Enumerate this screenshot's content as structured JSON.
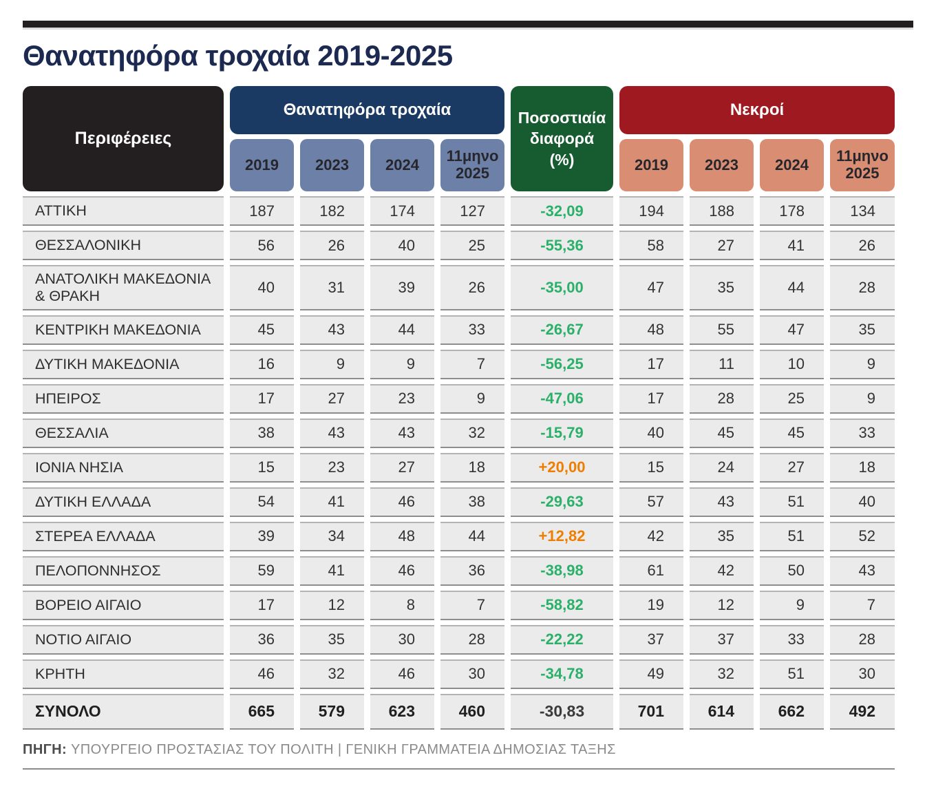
{
  "page": {
    "title": "Θανατηφόρα τροχαία 2019-2025",
    "source_label": "ΠΗΓΗ:",
    "source_text": "ΥΠΟΥΡΓΕΙΟ ΠΡΟΣΤΑΣΙΑΣ ΤΟΥ ΠΟΛΙΤΗ | ΓΕΝΙΚΗ ΓΡΑΜΜΑΤΕΙΑ ΔΗΜΟΣΙΑΣ ΤΑΞΗΣ"
  },
  "table": {
    "region_header": "Περιφέρειες",
    "fatal_group": {
      "label": "Θανατηφόρα τροχαία",
      "years": [
        "2019",
        "2023",
        "2024",
        "11μηνο 2025"
      ]
    },
    "pct_header_lines": [
      "Ποσοστιαία",
      "διαφορά",
      "(%)"
    ],
    "dead_group": {
      "label": "Νεκροί",
      "years": [
        "2019",
        "2023",
        "2024",
        "11μηνο 2025"
      ]
    },
    "rows": [
      {
        "region": "ΑΤΤΙΚΗ",
        "fatal": [
          187,
          182,
          174,
          127
        ],
        "pct": "-32,09",
        "dead": [
          194,
          188,
          178,
          134
        ]
      },
      {
        "region": "ΘΕΣΣΑΛΟΝΙΚΗ",
        "fatal": [
          56,
          26,
          40,
          25
        ],
        "pct": "-55,36",
        "dead": [
          58,
          27,
          41,
          26
        ]
      },
      {
        "region": "ΑΝΑΤΟΛΙΚΗ ΜΑΚΕΔΟΝΙΑ & ΘΡΑΚΗ",
        "fatal": [
          40,
          31,
          39,
          26
        ],
        "pct": "-35,00",
        "dead": [
          47,
          35,
          44,
          28
        ]
      },
      {
        "region": "ΚΕΝΤΡΙΚΗ ΜΑΚΕΔΟΝΙΑ",
        "fatal": [
          45,
          43,
          44,
          33
        ],
        "pct": "-26,67",
        "dead": [
          48,
          55,
          47,
          35
        ]
      },
      {
        "region": "ΔΥΤΙΚΗ ΜΑΚΕΔΟΝΙΑ",
        "fatal": [
          16,
          9,
          9,
          7
        ],
        "pct": "-56,25",
        "dead": [
          17,
          11,
          10,
          9
        ]
      },
      {
        "region": "ΗΠΕΙΡΟΣ",
        "fatal": [
          17,
          27,
          23,
          9
        ],
        "pct": "-47,06",
        "dead": [
          17,
          28,
          25,
          9
        ]
      },
      {
        "region": "ΘΕΣΣΑΛΙΑ",
        "fatal": [
          38,
          43,
          43,
          32
        ],
        "pct": "-15,79",
        "dead": [
          40,
          45,
          45,
          33
        ]
      },
      {
        "region": "ΙΟΝΙΑ ΝΗΣΙΑ",
        "fatal": [
          15,
          23,
          27,
          18
        ],
        "pct": "+20,00",
        "dead": [
          15,
          24,
          27,
          18
        ]
      },
      {
        "region": "ΔΥΤΙΚΗ ΕΛΛΑΔΑ",
        "fatal": [
          54,
          41,
          46,
          38
        ],
        "pct": "-29,63",
        "dead": [
          57,
          43,
          51,
          40
        ]
      },
      {
        "region": "ΣΤΕΡΕΑ ΕΛΛΑΔΑ",
        "fatal": [
          39,
          34,
          48,
          44
        ],
        "pct": "+12,82",
        "dead": [
          42,
          35,
          51,
          52
        ]
      },
      {
        "region": "ΠΕΛΟΠΟΝΝΗΣΟΣ",
        "fatal": [
          59,
          41,
          46,
          36
        ],
        "pct": "-38,98",
        "dead": [
          61,
          42,
          50,
          43
        ]
      },
      {
        "region": "ΒΟΡΕΙΟ ΑΙΓΑΙΟ",
        "fatal": [
          17,
          12,
          8,
          7
        ],
        "pct": "-58,82",
        "dead": [
          19,
          12,
          9,
          7
        ]
      },
      {
        "region": "ΝΟΤΙΟ ΑΙΓΑΙΟ",
        "fatal": [
          36,
          35,
          30,
          28
        ],
        "pct": "-22,22",
        "dead": [
          37,
          37,
          33,
          28
        ]
      },
      {
        "region": "ΚΡΗΤΗ",
        "fatal": [
          46,
          32,
          46,
          30
        ],
        "pct": "-34,78",
        "dead": [
          49,
          32,
          51,
          30
        ]
      }
    ],
    "total": {
      "region": "ΣΥΝΟΛΟ",
      "fatal": [
        665,
        579,
        623,
        460
      ],
      "pct": "-30,83",
      "dead": [
        701,
        614,
        662,
        492
      ]
    }
  },
  "colors": {
    "fatal_header": "#1a3a64",
    "year_fatal": "#6d81a8",
    "pct_header": "#175c30",
    "dead_header": "#9e1a20",
    "year_dead": "#d98d72",
    "pct_negative": "#2bb06a",
    "pct_positive": "#ee7d00",
    "title_color": "#1c2a52",
    "bar_color": "#231f20",
    "cell_bg": "#ebebeb"
  },
  "chart_data": {
    "type": "table",
    "title": "Θανατηφόρα τροχαία 2019-2025",
    "columns": [
      "Περιφέρειες",
      "Θανατηφόρα τροχαία 2019",
      "Θανατηφόρα τροχαία 2023",
      "Θανατηφόρα τροχαία 2024",
      "Θανατηφόρα τροχαία 11μηνο 2025",
      "Ποσοστιαία διαφορά (%)",
      "Νεκροί 2019",
      "Νεκροί 2023",
      "Νεκροί 2024",
      "Νεκροί 11μηνο 2025"
    ],
    "rows": [
      [
        "ΑΤΤΙΚΗ",
        187,
        182,
        174,
        127,
        -32.09,
        194,
        188,
        178,
        134
      ],
      [
        "ΘΕΣΣΑΛΟΝΙΚΗ",
        56,
        26,
        40,
        25,
        -55.36,
        58,
        27,
        41,
        26
      ],
      [
        "ΑΝΑΤΟΛΙΚΗ ΜΑΚΕΔΟΝΙΑ & ΘΡΑΚΗ",
        40,
        31,
        39,
        26,
        -35.0,
        47,
        35,
        44,
        28
      ],
      [
        "ΚΕΝΤΡΙΚΗ ΜΑΚΕΔΟΝΙΑ",
        45,
        43,
        44,
        33,
        -26.67,
        48,
        55,
        47,
        35
      ],
      [
        "ΔΥΤΙΚΗ ΜΑΚΕΔΟΝΙΑ",
        16,
        9,
        9,
        7,
        -56.25,
        17,
        11,
        10,
        9
      ],
      [
        "ΗΠΕΙΡΟΣ",
        17,
        27,
        23,
        9,
        -47.06,
        17,
        28,
        25,
        9
      ],
      [
        "ΘΕΣΣΑΛΙΑ",
        38,
        43,
        43,
        32,
        -15.79,
        40,
        45,
        45,
        33
      ],
      [
        "ΙΟΝΙΑ ΝΗΣΙΑ",
        15,
        23,
        27,
        18,
        20.0,
        15,
        24,
        27,
        18
      ],
      [
        "ΔΥΤΙΚΗ ΕΛΛΑΔΑ",
        54,
        41,
        46,
        38,
        -29.63,
        57,
        43,
        51,
        40
      ],
      [
        "ΣΤΕΡΕΑ ΕΛΛΑΔΑ",
        39,
        34,
        48,
        44,
        12.82,
        42,
        35,
        51,
        52
      ],
      [
        "ΠΕΛΟΠΟΝΝΗΣΟΣ",
        59,
        41,
        46,
        36,
        -38.98,
        61,
        42,
        50,
        43
      ],
      [
        "ΒΟΡΕΙΟ ΑΙΓΑΙΟ",
        17,
        12,
        8,
        7,
        -58.82,
        19,
        12,
        9,
        7
      ],
      [
        "ΝΟΤΙΟ ΑΙΓΑΙΟ",
        36,
        35,
        30,
        28,
        -22.22,
        37,
        37,
        33,
        28
      ],
      [
        "ΚΡΗΤΗ",
        46,
        32,
        46,
        30,
        -34.78,
        49,
        32,
        51,
        30
      ],
      [
        "ΣΥΝΟΛΟ",
        665,
        579,
        623,
        460,
        -30.83,
        701,
        614,
        662,
        492
      ]
    ],
    "source": "ΥΠΟΥΡΓΕΙΟ ΠΡΟΣΤΑΣΙΑΣ ΤΟΥ ΠΟΛΙΤΗ | ΓΕΝΙΚΗ ΓΡΑΜΜΑΤΕΙΑ ΔΗΜΟΣΙΑΣ ΤΑΞΗΣ"
  }
}
